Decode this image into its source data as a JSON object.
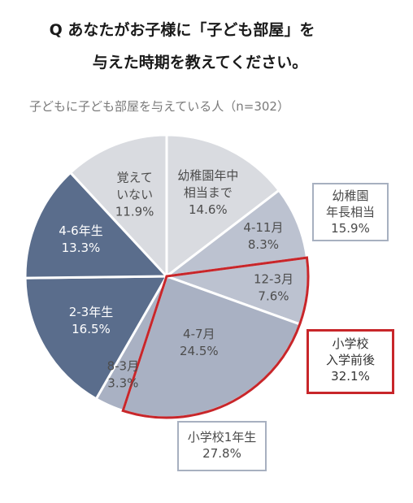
{
  "title_line1": "Q あなたがお子様に「子ども部屋」を",
  "title_line2": "与えた時期を教えてください。",
  "subtitle": "子どもに子ども部屋を与えている人（n=302）",
  "colors": {
    "light_gray": "#d9dbe0",
    "light_blue_gray": "#bcc2d0",
    "mid_blue_gray": "#a9b1c3",
    "dark_blue_gray": "#5a6d8c",
    "highlight_red": "#c8262a"
  },
  "chart_data": {
    "type": "pie",
    "title": "",
    "slices": [
      {
        "label": "幼稚園年中相当まで",
        "label_lines": [
          "幼稚園年中",
          "相当まで",
          "14.6%"
        ],
        "value": 14.6,
        "color": "#d9dbe0",
        "text_color": "#4d4d4d"
      },
      {
        "label": "4-11月",
        "label_lines": [
          "4-11月",
          "8.3%"
        ],
        "value": 8.3,
        "color": "#bcc2d0",
        "text_color": "#4d4d4d"
      },
      {
        "label": "12-3月",
        "label_lines": [
          "12-3月",
          "7.6%"
        ],
        "value": 7.6,
        "color": "#bcc2d0",
        "text_color": "#4d4d4d"
      },
      {
        "label": "4-7月",
        "label_lines": [
          "4-7月",
          "24.5%"
        ],
        "value": 24.5,
        "color": "#a9b1c3",
        "text_color": "#4d4d4d"
      },
      {
        "label": "8-3月",
        "label_lines": [
          "8-3月",
          "3.3%"
        ],
        "value": 3.3,
        "color": "#a9b1c3",
        "text_color": "#4d4d4d"
      },
      {
        "label": "2-3年生",
        "label_lines": [
          "2-3年生",
          "16.5%"
        ],
        "value": 16.5,
        "color": "#5a6d8c",
        "text_color": "#ffffff"
      },
      {
        "label": "4-6年生",
        "label_lines": [
          "4-6年生",
          "13.3%"
        ],
        "value": 13.3,
        "color": "#5a6d8c",
        "text_color": "#ffffff"
      },
      {
        "label": "覚えていない",
        "label_lines": [
          "覚えて",
          "いない",
          "11.9%"
        ],
        "value": 11.9,
        "color": "#d9dbe0",
        "text_color": "#4d4d4d"
      }
    ],
    "groups": [
      {
        "name": "幼稚園年長相当",
        "lines": [
          "幼稚園",
          "年長相当",
          "15.9%"
        ],
        "value": 15.9,
        "members": [
          "4-11月",
          "12-3月"
        ]
      },
      {
        "name": "小学校入学前後",
        "lines": [
          "小学校",
          "入学前後",
          "32.1%"
        ],
        "value": 32.1,
        "members": [
          "12-3月",
          "4-7月"
        ],
        "highlight": true
      },
      {
        "name": "小学校1年生",
        "lines": [
          "小学校1年生",
          "27.8%"
        ],
        "value": 27.8,
        "members": [
          "4-7月",
          "8-3月"
        ]
      }
    ]
  }
}
